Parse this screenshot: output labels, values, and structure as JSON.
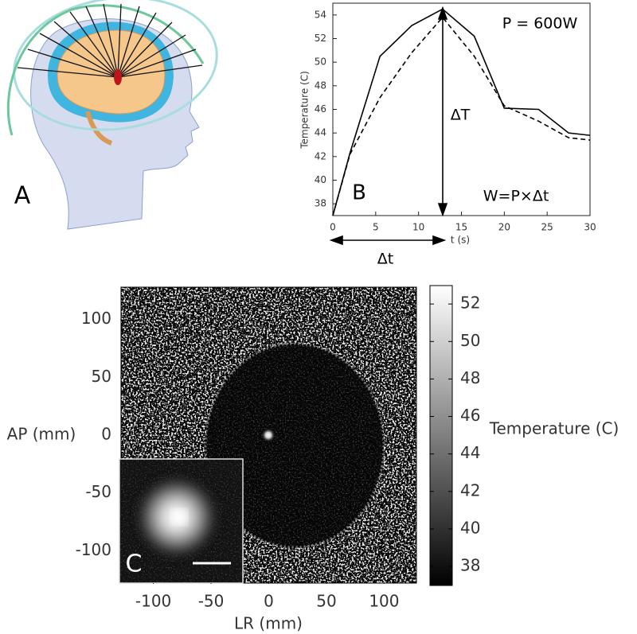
{
  "panel_labels": [
    "A",
    "B",
    "C"
  ],
  "chart_data": [
    {
      "type": "line",
      "ylabel": "Temperature (C)",
      "xlabel": "t (s)",
      "annotations": [
        "P = 600W",
        "ΔT",
        "W=P×Δt",
        "Δt"
      ],
      "x": [
        0,
        2,
        5.5,
        9.2,
        12.8,
        16.5,
        20,
        24,
        27.5,
        30
      ],
      "series": [
        {
          "color": "#000000",
          "dash": false,
          "values": [
            37,
            42.3,
            50.5,
            53.1,
            54.5,
            52.2,
            46.1,
            46,
            44,
            43.8
          ]
        },
        {
          "color": "#000000",
          "dash": true,
          "values": [
            37,
            42.2,
            47,
            50.8,
            53.8,
            50.5,
            46.3,
            45,
            43.6,
            43.4
          ]
        }
      ],
      "xlim": [
        0,
        30
      ],
      "xticks": [
        0,
        5,
        10,
        15,
        20,
        25,
        30
      ],
      "ylim": [
        37,
        55
      ],
      "yticks": [
        38,
        40,
        42,
        44,
        46,
        48,
        50,
        52,
        54
      ]
    },
    {
      "type": "image",
      "xlabel": "LR (mm)",
      "ylabel": "AP (mm)",
      "xlim": [
        -128,
        128
      ],
      "xticks": [
        -100,
        -50,
        0,
        50,
        100
      ],
      "ylim": [
        -128,
        128
      ],
      "yticks": [
        -100,
        -50,
        0,
        50,
        100
      ],
      "colorbar": {
        "label": "Temperature (C)",
        "lim": [
          37,
          53
        ],
        "ticks": [
          38,
          40,
          42,
          44,
          46,
          48,
          50,
          52
        ]
      }
    }
  ]
}
